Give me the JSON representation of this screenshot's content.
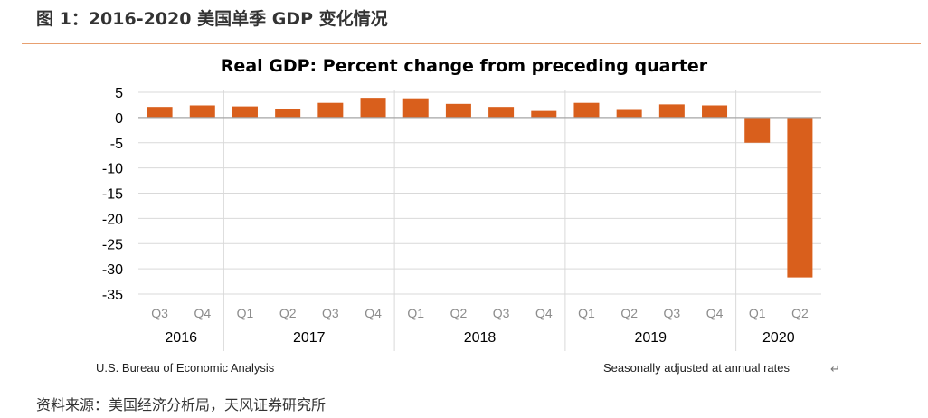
{
  "figure": {
    "caption": "图 1：2016-2020 美国单季 GDP 变化情况",
    "source": "资料来源：美国经济分析局，天风证券研究所",
    "return_mark": "↵"
  },
  "chart_data": {
    "type": "bar",
    "title": "Real GDP:  Percent change from preceding quarter",
    "xlabel": "",
    "ylabel": "",
    "ylim": [
      -35,
      5
    ],
    "yticks": [
      5,
      0,
      -5,
      -10,
      -15,
      -20,
      -25,
      -30,
      -35
    ],
    "categories": [
      "Q3",
      "Q4",
      "Q1",
      "Q2",
      "Q3",
      "Q4",
      "Q1",
      "Q2",
      "Q3",
      "Q4",
      "Q1",
      "Q2",
      "Q3",
      "Q4",
      "Q1",
      "Q2"
    ],
    "years": [
      {
        "label": "2016",
        "start": 0,
        "end": 1
      },
      {
        "label": "2017",
        "start": 2,
        "end": 5
      },
      {
        "label": "2018",
        "start": 6,
        "end": 9
      },
      {
        "label": "2019",
        "start": 10,
        "end": 13
      },
      {
        "label": "2020",
        "start": 14,
        "end": 15
      }
    ],
    "values": [
      2.1,
      2.4,
      2.2,
      1.7,
      2.9,
      3.9,
      3.8,
      2.7,
      2.1,
      1.3,
      2.9,
      1.5,
      2.6,
      2.4,
      -5.0,
      -31.7
    ],
    "bar_color": "#d95f1c",
    "grid": true,
    "footnote_left": "U.S. Bureau of Economic Analysis",
    "footnote_right": "Seasonally adjusted at annual rates"
  }
}
